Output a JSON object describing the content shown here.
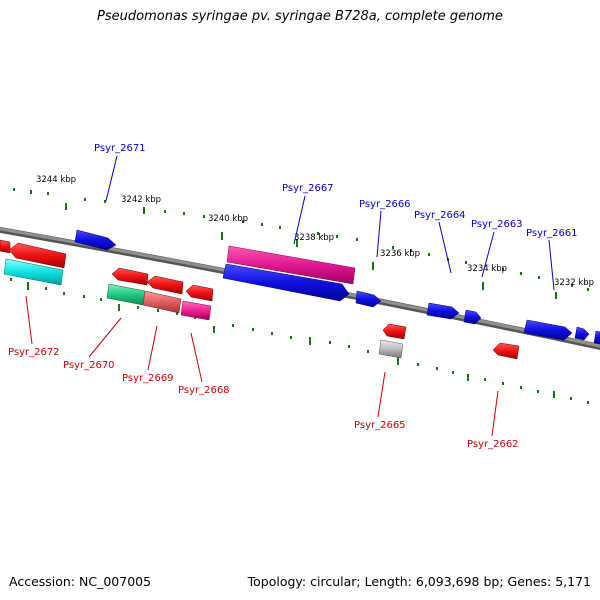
{
  "title": "Pseudomonas syringae pv. syringae B728a, complete genome",
  "footer": {
    "accession": "Accession: NC_007005",
    "summary": "Topology: circular; Length: 6,093,698 bp; Genes: 5,171"
  },
  "scale_labels": [
    "3244 kbp",
    "3242 kbp",
    "3240 kbp",
    "3238 kbp",
    "3236 kbp",
    "3234 kbp",
    "3232 kbp"
  ],
  "gene_labels": {
    "plus": [
      "Psyr_2671",
      "Psyr_2667",
      "Psyr_2666",
      "Psyr_2664",
      "Psyr_2663",
      "Psyr_2661"
    ],
    "minus": [
      "Psyr_2672",
      "Psyr_2670",
      "Psyr_2669",
      "Psyr_2668",
      "Psyr_2665",
      "Psyr_2662"
    ]
  },
  "colors": {
    "plus_label": "#0000cc",
    "minus_label": "#cc0000",
    "tick": "#117711",
    "backbone": "#808080",
    "blue": "#1010e0",
    "red": "#ee1111",
    "magenta": "#e01890",
    "cyan": "#10e0e0",
    "green": "#20c880",
    "salmon": "#e06060",
    "pink": "#ee2090",
    "gray": "#bbbbbb"
  }
}
